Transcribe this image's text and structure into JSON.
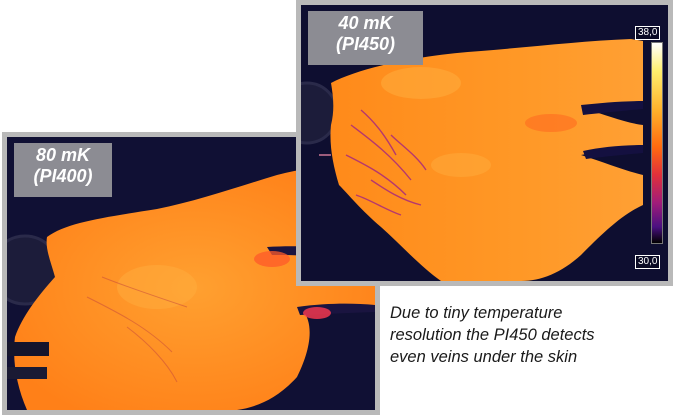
{
  "panels": {
    "left": {
      "sensitivity": "80 mK",
      "model": "(PI400)"
    },
    "right": {
      "sensitivity": "40 mK",
      "model": "(PI450)",
      "scale_max": "38,0",
      "scale_min": "30,0"
    }
  },
  "caption": {
    "line1": "Due to tiny temperature",
    "line2": "resolution the PI450 detects",
    "line3": "even veins under the skin"
  },
  "colors": {
    "background_dark": "#101030",
    "hand_orange": "#ff8c1e",
    "badge_gray": "#8c8c93"
  }
}
